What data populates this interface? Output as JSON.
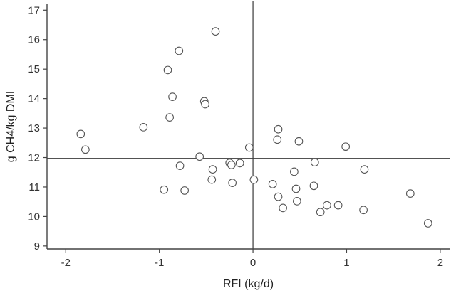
{
  "chart_data": {
    "type": "scatter",
    "title": "",
    "xlabel": "RFI (kg/d)",
    "ylabel": "g CH4/kg DMI",
    "xlim": [
      -2.2,
      2.1
    ],
    "ylim": [
      8.9,
      17.2
    ],
    "xticks": [
      -2,
      -1,
      0,
      1,
      2
    ],
    "yticks": [
      9,
      10,
      11,
      12,
      13,
      14,
      15,
      16,
      17
    ],
    "reference_lines": {
      "vertical_x": 0,
      "horizontal_y": 11.97
    },
    "grid": false,
    "legend": "none",
    "marker": "open-circle",
    "points": [
      {
        "x": -1.84,
        "y": 12.8
      },
      {
        "x": -1.79,
        "y": 12.27
      },
      {
        "x": -1.17,
        "y": 13.03
      },
      {
        "x": -0.95,
        "y": 10.91
      },
      {
        "x": -0.91,
        "y": 14.97
      },
      {
        "x": -0.89,
        "y": 13.36
      },
      {
        "x": -0.86,
        "y": 14.06
      },
      {
        "x": -0.79,
        "y": 15.62
      },
      {
        "x": -0.78,
        "y": 11.72
      },
      {
        "x": -0.73,
        "y": 10.88
      },
      {
        "x": -0.57,
        "y": 12.03
      },
      {
        "x": -0.52,
        "y": 13.91
      },
      {
        "x": -0.51,
        "y": 13.81
      },
      {
        "x": -0.44,
        "y": 11.25
      },
      {
        "x": -0.43,
        "y": 11.6
      },
      {
        "x": -0.4,
        "y": 16.28
      },
      {
        "x": -0.25,
        "y": 11.82
      },
      {
        "x": -0.23,
        "y": 11.75
      },
      {
        "x": -0.22,
        "y": 11.14
      },
      {
        "x": -0.14,
        "y": 11.81
      },
      {
        "x": -0.04,
        "y": 12.34
      },
      {
        "x": 0.01,
        "y": 11.25
      },
      {
        "x": 0.21,
        "y": 11.1
      },
      {
        "x": 0.26,
        "y": 12.61
      },
      {
        "x": 0.27,
        "y": 12.96
      },
      {
        "x": 0.27,
        "y": 10.67
      },
      {
        "x": 0.32,
        "y": 10.29
      },
      {
        "x": 0.44,
        "y": 11.52
      },
      {
        "x": 0.46,
        "y": 10.94
      },
      {
        "x": 0.47,
        "y": 10.52
      },
      {
        "x": 0.49,
        "y": 12.55
      },
      {
        "x": 0.65,
        "y": 11.04
      },
      {
        "x": 0.66,
        "y": 11.84
      },
      {
        "x": 0.72,
        "y": 10.15
      },
      {
        "x": 0.79,
        "y": 10.38
      },
      {
        "x": 0.91,
        "y": 10.38
      },
      {
        "x": 0.99,
        "y": 12.37
      },
      {
        "x": 1.18,
        "y": 10.22
      },
      {
        "x": 1.19,
        "y": 11.6
      },
      {
        "x": 1.68,
        "y": 10.78
      },
      {
        "x": 1.87,
        "y": 9.77
      }
    ]
  }
}
